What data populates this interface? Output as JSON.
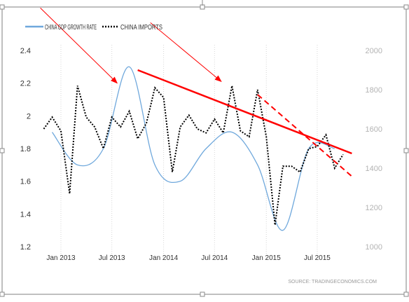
{
  "chart_data": {
    "type": "line",
    "x_ticks": [
      "Jan 2013",
      "Jul 2013",
      "Jan 2014",
      "Jul 2014",
      "Jan 2015",
      "Jul 2015"
    ],
    "y_left_ticks": [
      "2.4",
      "2.2",
      "2",
      "1.8",
      "1.6",
      "1.4",
      "1.2"
    ],
    "y_right_ticks": [
      "2000",
      "1800",
      "1600",
      "1400",
      "1200",
      "1000"
    ],
    "ylim_left": [
      1.2,
      2.4
    ],
    "ylim_right": [
      1000,
      2000
    ],
    "xlim": [
      "2012-10-01",
      "2015-11-15"
    ],
    "grid": "vertical dotted",
    "legend_position": "top-left",
    "source": "SOURCE: TRADINGECONOMICS.COM",
    "series": [
      {
        "name": "CHINA GDP GROWTH RATE",
        "axis": "left",
        "style": "solid",
        "color": "#6fa8dc",
        "x": [
          "2012-12-01",
          "2013-03-01",
          "2013-06-01",
          "2013-09-01",
          "2013-12-01",
          "2014-03-01",
          "2014-06-01",
          "2014-09-01",
          "2014-12-01",
          "2015-03-01",
          "2015-06-01",
          "2015-09-01"
        ],
        "y": [
          1.9,
          1.7,
          1.8,
          2.3,
          1.7,
          1.6,
          1.8,
          1.9,
          1.7,
          1.3,
          1.8,
          1.8
        ]
      },
      {
        "name": "CHINA IMPORTS",
        "axis": "right",
        "style": "dotted",
        "color": "#000000",
        "x": [
          "2012-11-01",
          "2012-12-01",
          "2013-01-01",
          "2013-02-01",
          "2013-03-01",
          "2013-04-01",
          "2013-05-01",
          "2013-06-01",
          "2013-07-01",
          "2013-08-01",
          "2013-09-01",
          "2013-10-01",
          "2013-11-01",
          "2013-12-01",
          "2014-01-01",
          "2014-02-01",
          "2014-03-01",
          "2014-04-01",
          "2014-05-01",
          "2014-06-01",
          "2014-07-01",
          "2014-08-01",
          "2014-09-01",
          "2014-10-01",
          "2014-11-01",
          "2014-12-01",
          "2015-01-01",
          "2015-02-01",
          "2015-03-01",
          "2015-04-01",
          "2015-05-01",
          "2015-06-01",
          "2015-07-01",
          "2015-08-01",
          "2015-09-01",
          "2015-10-01"
        ],
        "y": [
          1600,
          1660,
          1590,
          1270,
          1820,
          1660,
          1610,
          1500,
          1660,
          1610,
          1690,
          1550,
          1630,
          1810,
          1760,
          1380,
          1610,
          1670,
          1600,
          1580,
          1650,
          1580,
          1820,
          1590,
          1560,
          1800,
          1560,
          1110,
          1410,
          1410,
          1380,
          1500,
          1510,
          1570,
          1400,
          1470
        ]
      }
    ],
    "annotations": [
      {
        "type": "trend-line",
        "style": "solid",
        "color": "#ff0000",
        "from": {
          "x": "2013-10-01",
          "y_left": 2.28
        },
        "to": {
          "x": "2015-11-01",
          "y_left": 1.77
        }
      },
      {
        "type": "trend-line",
        "style": "dashed",
        "color": "#ff0000",
        "from": {
          "x": "2014-12-01",
          "y_left": 2.13
        },
        "to": {
          "x": "2015-11-01",
          "y_left": 1.63
        }
      },
      {
        "type": "arrow",
        "color": "#ff0000",
        "from": {
          "x": "2012-10-20",
          "y_left": 2.66
        },
        "to": {
          "x": "2013-07-20",
          "y_left": 2.2
        }
      },
      {
        "type": "arrow",
        "color": "#ff0000",
        "from": {
          "x": "2013-11-15",
          "y_left": 2.57
        },
        "to": {
          "x": "2014-07-25",
          "y_left": 2.21
        }
      }
    ]
  }
}
